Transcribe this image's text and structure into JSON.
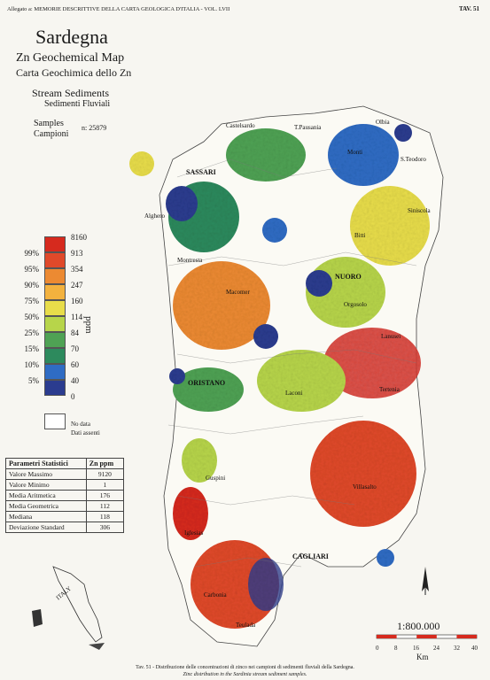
{
  "header": {
    "left": "Allegato a: MEMORIE DESCRITTIVE DELLA CARTA GEOLOGICA D'ITALIA - VOL. LVII",
    "right": "TAV. 51"
  },
  "title": {
    "main": "Sardegna",
    "map_en": "Zn Geochemical Map",
    "map_it": "Carta Geochimica dello Zn",
    "media_en": "Stream Sediments",
    "media_it": "Sedimenti Fluviali",
    "samples_en": "Samples",
    "samples_it": "Campioni",
    "sample_count": "n: 25879"
  },
  "legend": {
    "unit": "ppm",
    "values": [
      "8160",
      "913",
      "354",
      "247",
      "160",
      "114",
      "84",
      "70",
      "60",
      "40",
      "0"
    ],
    "percentiles": [
      "99%",
      "95%",
      "90%",
      "75%",
      "50%",
      "25%",
      "15%",
      "10%",
      "5%"
    ],
    "colors": [
      "#d62a1e",
      "#e0492a",
      "#ec8a32",
      "#f3b23e",
      "#e8dd4a",
      "#b7d54a",
      "#4fa254",
      "#2d8a5d",
      "#2f6cc4",
      "#2b3c8f"
    ],
    "no_data_en": "No data",
    "no_data_it": "Dati assenti"
  },
  "stats": {
    "header_param": "Parametri Statistici",
    "header_unit": "Zn  ppm",
    "rows": [
      {
        "label": "Valore Massimo",
        "value": "9120"
      },
      {
        "label": "Valore Minimo",
        "value": "1"
      },
      {
        "label": "Media Aritmetica",
        "value": "176"
      },
      {
        "label": "Media Geometrica",
        "value": "112"
      },
      {
        "label": "Mediana",
        "value": "118"
      },
      {
        "label": "Deviazione Standard",
        "value": "306"
      }
    ]
  },
  "places": {
    "sassari": "SASSARI",
    "nuoro": "NUORO",
    "oristano": "ORISTANO",
    "cagliari": "CAGLIARI",
    "castelsardo": "Castelsardo",
    "tempio": "T.Pausania",
    "olbia": "Olbia",
    "monti": "Monti",
    "santeodoro": "S.Teodoro",
    "alghero": "Alghero",
    "siniscola": "Siniscola",
    "bitti": "Bitti",
    "montresta": "Montresta",
    "macomer": "Macomer",
    "orgosolo": "Orgosolo",
    "lanusei": "Lanusei",
    "laconi": "Laconi",
    "tertenia": "Tertenia",
    "villasalto": "Villasalto",
    "guspini": "Guspini",
    "iglesias": "Iglesias",
    "carbonia": "Carbonia",
    "teulada": "Teulada",
    "italy": "ITALY"
  },
  "scale": {
    "ratio": "1:800.000",
    "ticks": [
      "0",
      "8",
      "16",
      "24",
      "32",
      "40"
    ],
    "unit": "Km"
  },
  "caption": {
    "it": "Tav. 51 - Distribuzione delle concentrazioni di zinco nei campioni di sedimenti fluviali della Sardegna.",
    "en": "Zinc distribution in the Sardinia stream sediment samples."
  }
}
